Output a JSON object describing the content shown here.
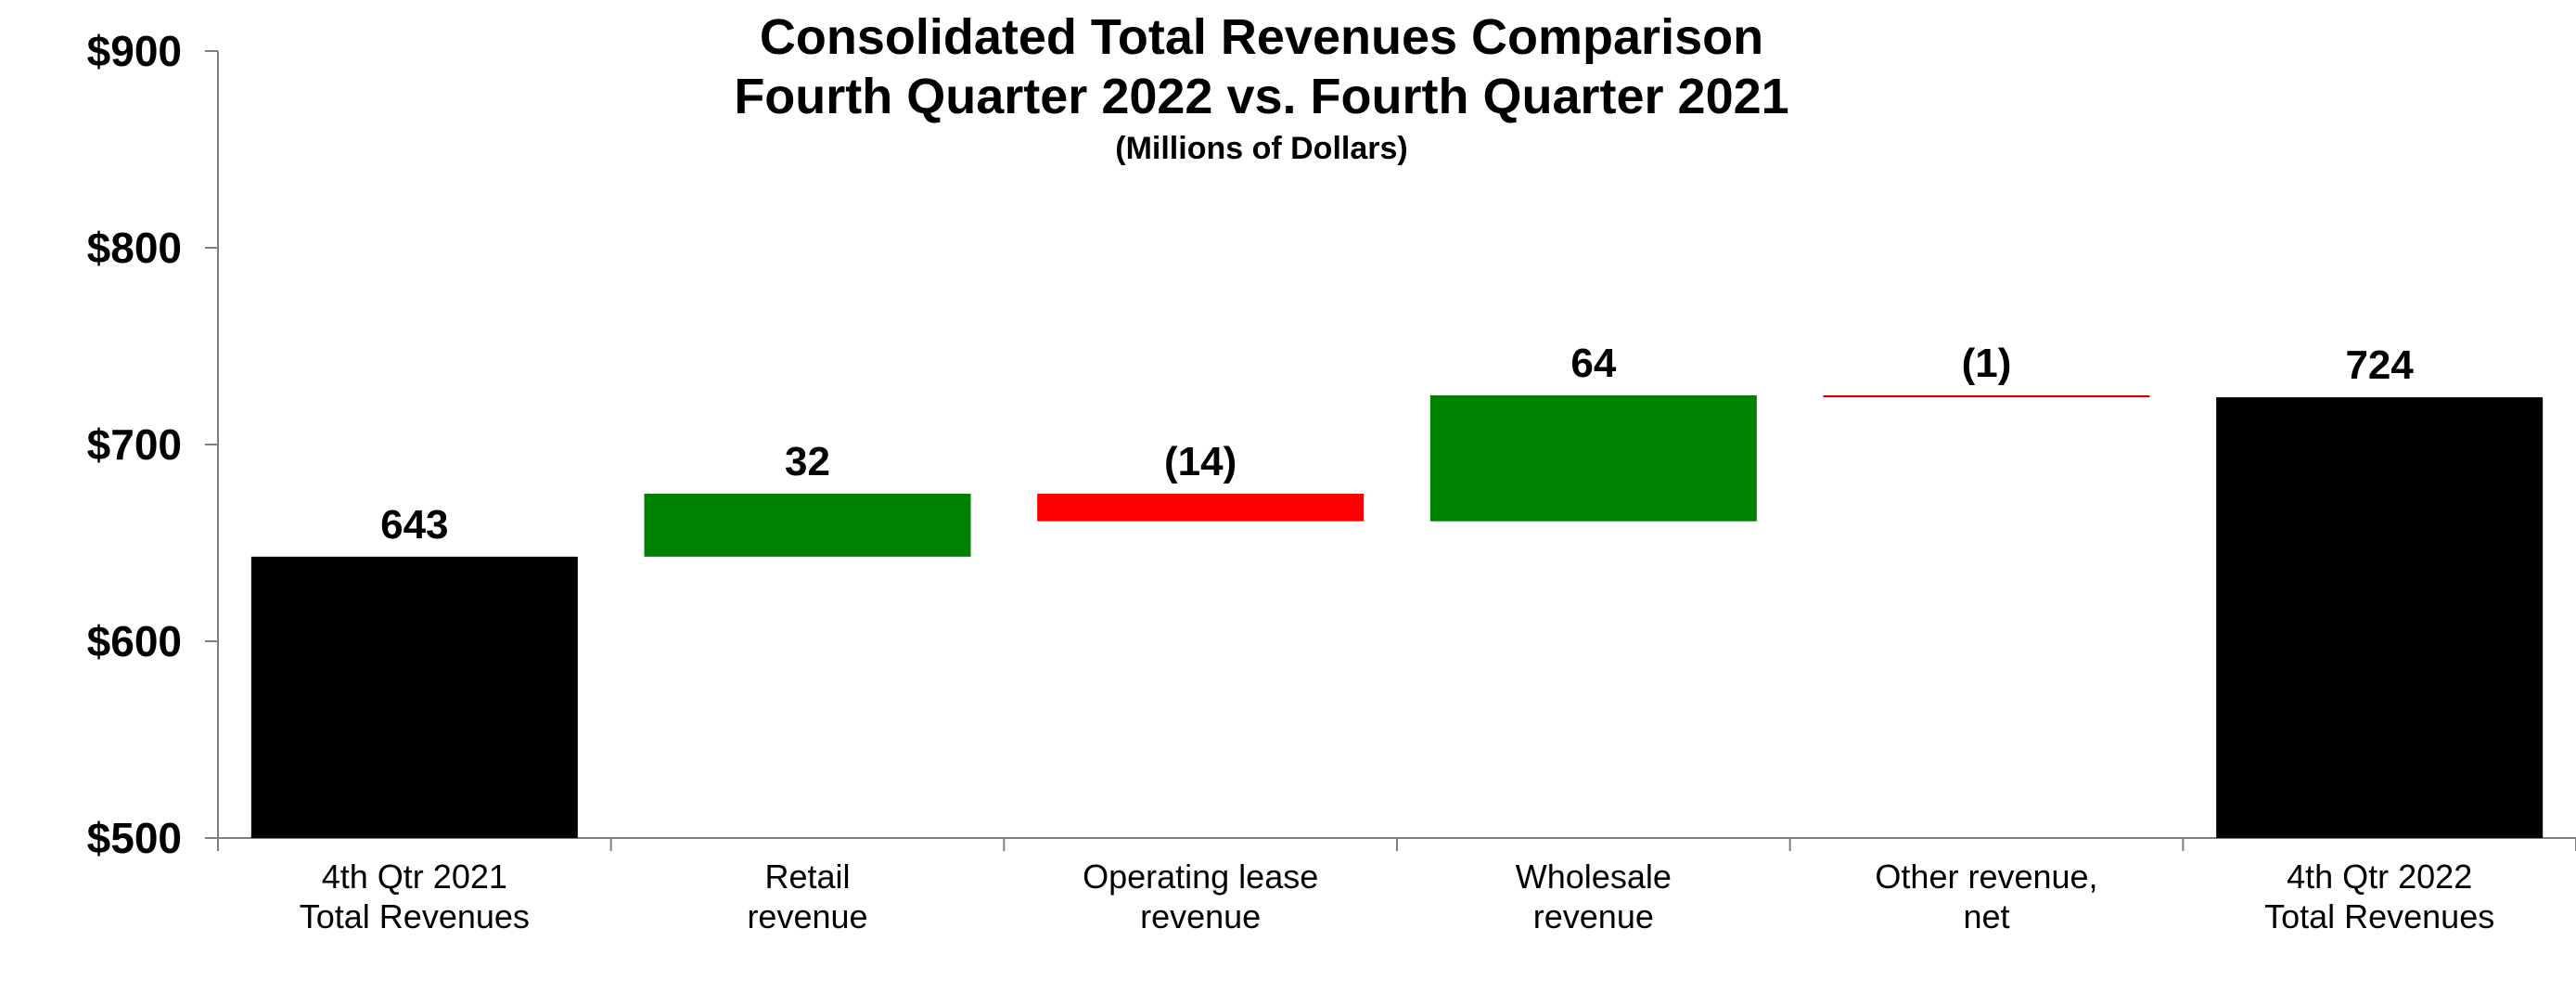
{
  "chart_data": {
    "type": "waterfall",
    "title_lines": [
      "Consolidated Total Revenues Comparison",
      "Fourth Quarter 2022 vs. Fourth Quarter 2021"
    ],
    "subtitle": "(Millions of Dollars)",
    "ylim": [
      500,
      900
    ],
    "yticks": [
      500,
      600,
      700,
      800,
      900
    ],
    "ytick_labels": [
      "$500",
      "$600",
      "$700",
      "$800",
      "$900"
    ],
    "categories": [
      [
        "4th Qtr 2021",
        "Total Revenues"
      ],
      [
        "Retail",
        "revenue"
      ],
      [
        "Operating lease",
        "revenue"
      ],
      [
        "Wholesale",
        "revenue"
      ],
      [
        "Other revenue,",
        "net"
      ],
      [
        "4th Qtr 2022",
        "Total Revenues"
      ]
    ],
    "bars": [
      {
        "kind": "total",
        "start": 0,
        "end": 643,
        "value": 643,
        "label": "643",
        "color": "#000000"
      },
      {
        "kind": "increase",
        "start": 643,
        "end": 675,
        "value": 32,
        "label": "32",
        "color": "#008000"
      },
      {
        "kind": "decrease",
        "start": 675,
        "end": 661,
        "value": -14,
        "label": "(14)",
        "color": "#ff0000"
      },
      {
        "kind": "increase",
        "start": 661,
        "end": 725,
        "value": 64,
        "label": "64",
        "color": "#008000"
      },
      {
        "kind": "decrease",
        "start": 725,
        "end": 724,
        "value": -1,
        "label": "(1)",
        "color": "#cc0000"
      },
      {
        "kind": "total",
        "start": 0,
        "end": 724,
        "value": 724,
        "label": "724",
        "color": "#000000"
      }
    ],
    "axis_color": "#808080",
    "grid": false
  }
}
